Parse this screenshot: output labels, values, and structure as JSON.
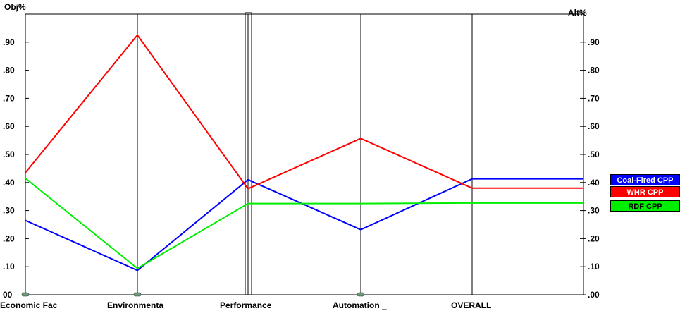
{
  "chart_data": {
    "type": "line",
    "subtype": "parallel-coordinates",
    "left_axis_title": "Obj%",
    "right_axis_title": "Alt%",
    "left_ticks": [
      ".90",
      ".80",
      ".70",
      ".60",
      ".50",
      ".40",
      ".30",
      ".20",
      ".10",
      "00"
    ],
    "right_ticks": [
      ".90",
      ".80",
      ".70",
      ".60",
      ".50",
      ".40",
      ".30",
      ".20",
      ".10",
      ".00"
    ],
    "ylim": [
      0,
      1.0
    ],
    "categories": [
      "Economic Fac",
      "Environmenta",
      "Performance",
      "Automation _",
      "OVERALL"
    ],
    "series": [
      {
        "name": "Coal-Fired CPP",
        "color": "#0000ff",
        "values": [
          0.265,
          0.087,
          0.41,
          0.232,
          0.413
        ]
      },
      {
        "name": "WHR CPP",
        "color": "#ff0000",
        "values": [
          0.435,
          0.925,
          0.378,
          0.557,
          0.38
        ]
      },
      {
        "name": "RDF CPP",
        "color": "#00ee00",
        "values": [
          0.415,
          0.094,
          0.325,
          0.325,
          0.327
        ]
      }
    ],
    "legend_position": "right",
    "grid": false
  }
}
